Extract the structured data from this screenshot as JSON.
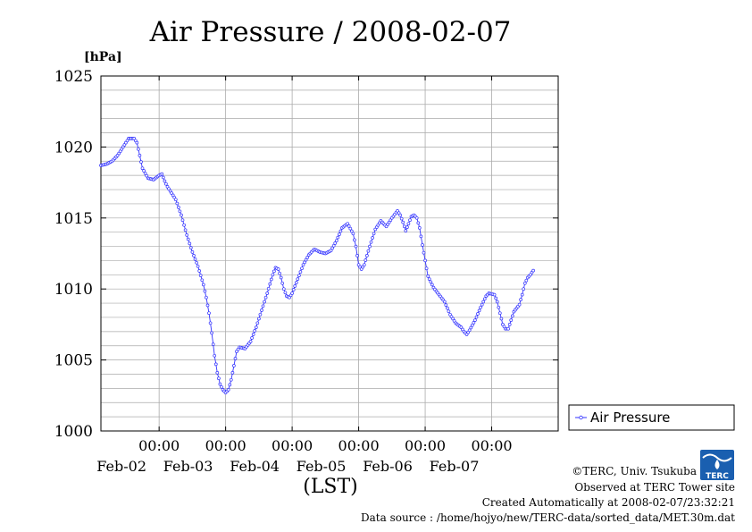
{
  "chart_data": {
    "type": "line",
    "title": "Air Pressure / 2008-02-07",
    "ylabel": "[hPa]",
    "xlabel": "(LST)",
    "ylim": [
      1000,
      1025
    ],
    "yticks": [
      1000,
      1005,
      1010,
      1015,
      1020,
      1025
    ],
    "xlim_hours": [
      -21,
      144
    ],
    "xtick_time_label": "00:00",
    "xticks": [
      "Feb-02",
      "Feb-03",
      "Feb-04",
      "Feb-05",
      "Feb-06",
      "Feb-07"
    ],
    "grid": true,
    "legend": {
      "position": "right",
      "entries": [
        "Air Pressure"
      ]
    },
    "series": [
      {
        "name": "Air Pressure",
        "color": "#3333ff",
        "points": [
          [
            -21,
            1018.7
          ],
          [
            -19,
            1018.8
          ],
          [
            -17,
            1019.0
          ],
          [
            -15,
            1019.4
          ],
          [
            -13,
            1020.0
          ],
          [
            -11,
            1020.6
          ],
          [
            -9,
            1020.6
          ],
          [
            -8,
            1020.3
          ],
          [
            -7,
            1019.4
          ],
          [
            -6,
            1018.5
          ],
          [
            -4,
            1017.8
          ],
          [
            -2,
            1017.7
          ],
          [
            0,
            1018.0
          ],
          [
            1,
            1018.1
          ],
          [
            2,
            1017.6
          ],
          [
            3,
            1017.2
          ],
          [
            4,
            1016.9
          ],
          [
            6,
            1016.3
          ],
          [
            8,
            1015.2
          ],
          [
            10,
            1013.8
          ],
          [
            12,
            1012.6
          ],
          [
            14,
            1011.6
          ],
          [
            16,
            1010.3
          ],
          [
            17,
            1009.4
          ],
          [
            18,
            1008.3
          ],
          [
            19,
            1006.9
          ],
          [
            20,
            1005.3
          ],
          [
            21,
            1004.1
          ],
          [
            22,
            1003.3
          ],
          [
            23,
            1002.9
          ],
          [
            24,
            1002.7
          ],
          [
            25,
            1002.9
          ],
          [
            26,
            1003.6
          ],
          [
            27,
            1004.6
          ],
          [
            28,
            1005.6
          ],
          [
            29,
            1005.9
          ],
          [
            31,
            1005.8
          ],
          [
            33,
            1006.3
          ],
          [
            35,
            1007.3
          ],
          [
            37,
            1008.5
          ],
          [
            39,
            1009.7
          ],
          [
            41,
            1011.0
          ],
          [
            42,
            1011.5
          ],
          [
            43,
            1011.4
          ],
          [
            44,
            1010.8
          ],
          [
            45,
            1010.0
          ],
          [
            46,
            1009.5
          ],
          [
            47,
            1009.4
          ],
          [
            48,
            1009.7
          ],
          [
            50,
            1010.7
          ],
          [
            52,
            1011.7
          ],
          [
            54,
            1012.4
          ],
          [
            56,
            1012.8
          ],
          [
            58,
            1012.6
          ],
          [
            60,
            1012.5
          ],
          [
            62,
            1012.7
          ],
          [
            64,
            1013.4
          ],
          [
            66,
            1014.3
          ],
          [
            68,
            1014.6
          ],
          [
            70,
            1013.9
          ],
          [
            71,
            1013.0
          ],
          [
            72,
            1011.7
          ],
          [
            73,
            1011.4
          ],
          [
            74,
            1011.7
          ],
          [
            76,
            1013.0
          ],
          [
            78,
            1014.2
          ],
          [
            80,
            1014.8
          ],
          [
            82,
            1014.4
          ],
          [
            84,
            1015.0
          ],
          [
            86,
            1015.5
          ],
          [
            87,
            1015.2
          ],
          [
            88,
            1014.7
          ],
          [
            89,
            1014.1
          ],
          [
            90,
            1014.6
          ],
          [
            91,
            1015.1
          ],
          [
            92,
            1015.2
          ],
          [
            93,
            1015.0
          ],
          [
            94,
            1014.3
          ],
          [
            95,
            1013.1
          ],
          [
            96,
            1012.0
          ],
          [
            97,
            1010.9
          ],
          [
            99,
            1010.1
          ],
          [
            101,
            1009.6
          ],
          [
            103,
            1009.1
          ],
          [
            105,
            1008.2
          ],
          [
            107,
            1007.6
          ],
          [
            109,
            1007.3
          ],
          [
            110,
            1007.0
          ],
          [
            111,
            1006.8
          ],
          [
            112,
            1007.1
          ],
          [
            114,
            1007.8
          ],
          [
            116,
            1008.7
          ],
          [
            118,
            1009.5
          ],
          [
            119,
            1009.7
          ],
          [
            121,
            1009.6
          ],
          [
            122,
            1009.1
          ],
          [
            123,
            1008.3
          ],
          [
            124,
            1007.5
          ],
          [
            125,
            1007.2
          ],
          [
            126,
            1007.2
          ],
          [
            127,
            1007.8
          ],
          [
            128,
            1008.4
          ],
          [
            130,
            1008.9
          ],
          [
            131,
            1009.6
          ],
          [
            132,
            1010.4
          ],
          [
            133,
            1010.8
          ],
          [
            134,
            1011.0
          ],
          [
            135,
            1011.3
          ]
        ]
      }
    ]
  },
  "footer": {
    "copyright": "©TERC, Univ. Tsukuba",
    "observed": "Observed at TERC Tower site",
    "created": "Created Automatically at 2008-02-07/23:32:21",
    "source": "Data source : /home/hojyo/new/TERC-data/sorted_data/MET.30m.dat"
  },
  "logo": {
    "text": "TERC",
    "color": "#1a5fb0"
  }
}
